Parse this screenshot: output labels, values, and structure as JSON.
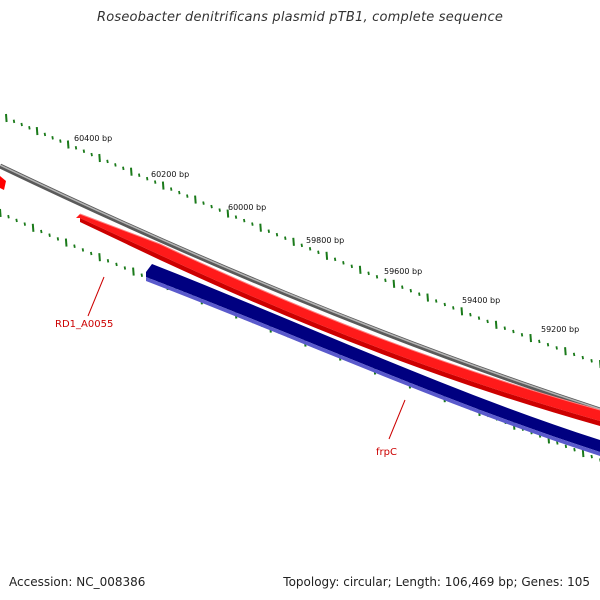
{
  "title": "Roseobacter denitrificans plasmid pTB1, complete sequence",
  "footer": {
    "accession": "Accession: NC_008386",
    "summary": "Topology: circular; Length: 106,469 bp; Genes: 105"
  },
  "scale_ticks": [
    {
      "label": "60400 bp"
    },
    {
      "label": "60200 bp"
    },
    {
      "label": "60000 bp"
    },
    {
      "label": "59800 bp"
    },
    {
      "label": "59600 bp"
    },
    {
      "label": "59400 bp"
    },
    {
      "label": "59200 bp"
    }
  ],
  "genes": [
    {
      "name": "RD1_A0055",
      "strand": "forward",
      "color": "#ff0000",
      "label_color": "#cc0000"
    },
    {
      "name": "frpC",
      "strand": "reverse",
      "color": "#000080",
      "label_color": "#cc0000"
    }
  ],
  "colors": {
    "backbone": "#808080",
    "tick": "#1a7a1a",
    "forward_gene": "#ff0000",
    "reverse_gene": "#000080",
    "label": "#cc0000"
  }
}
